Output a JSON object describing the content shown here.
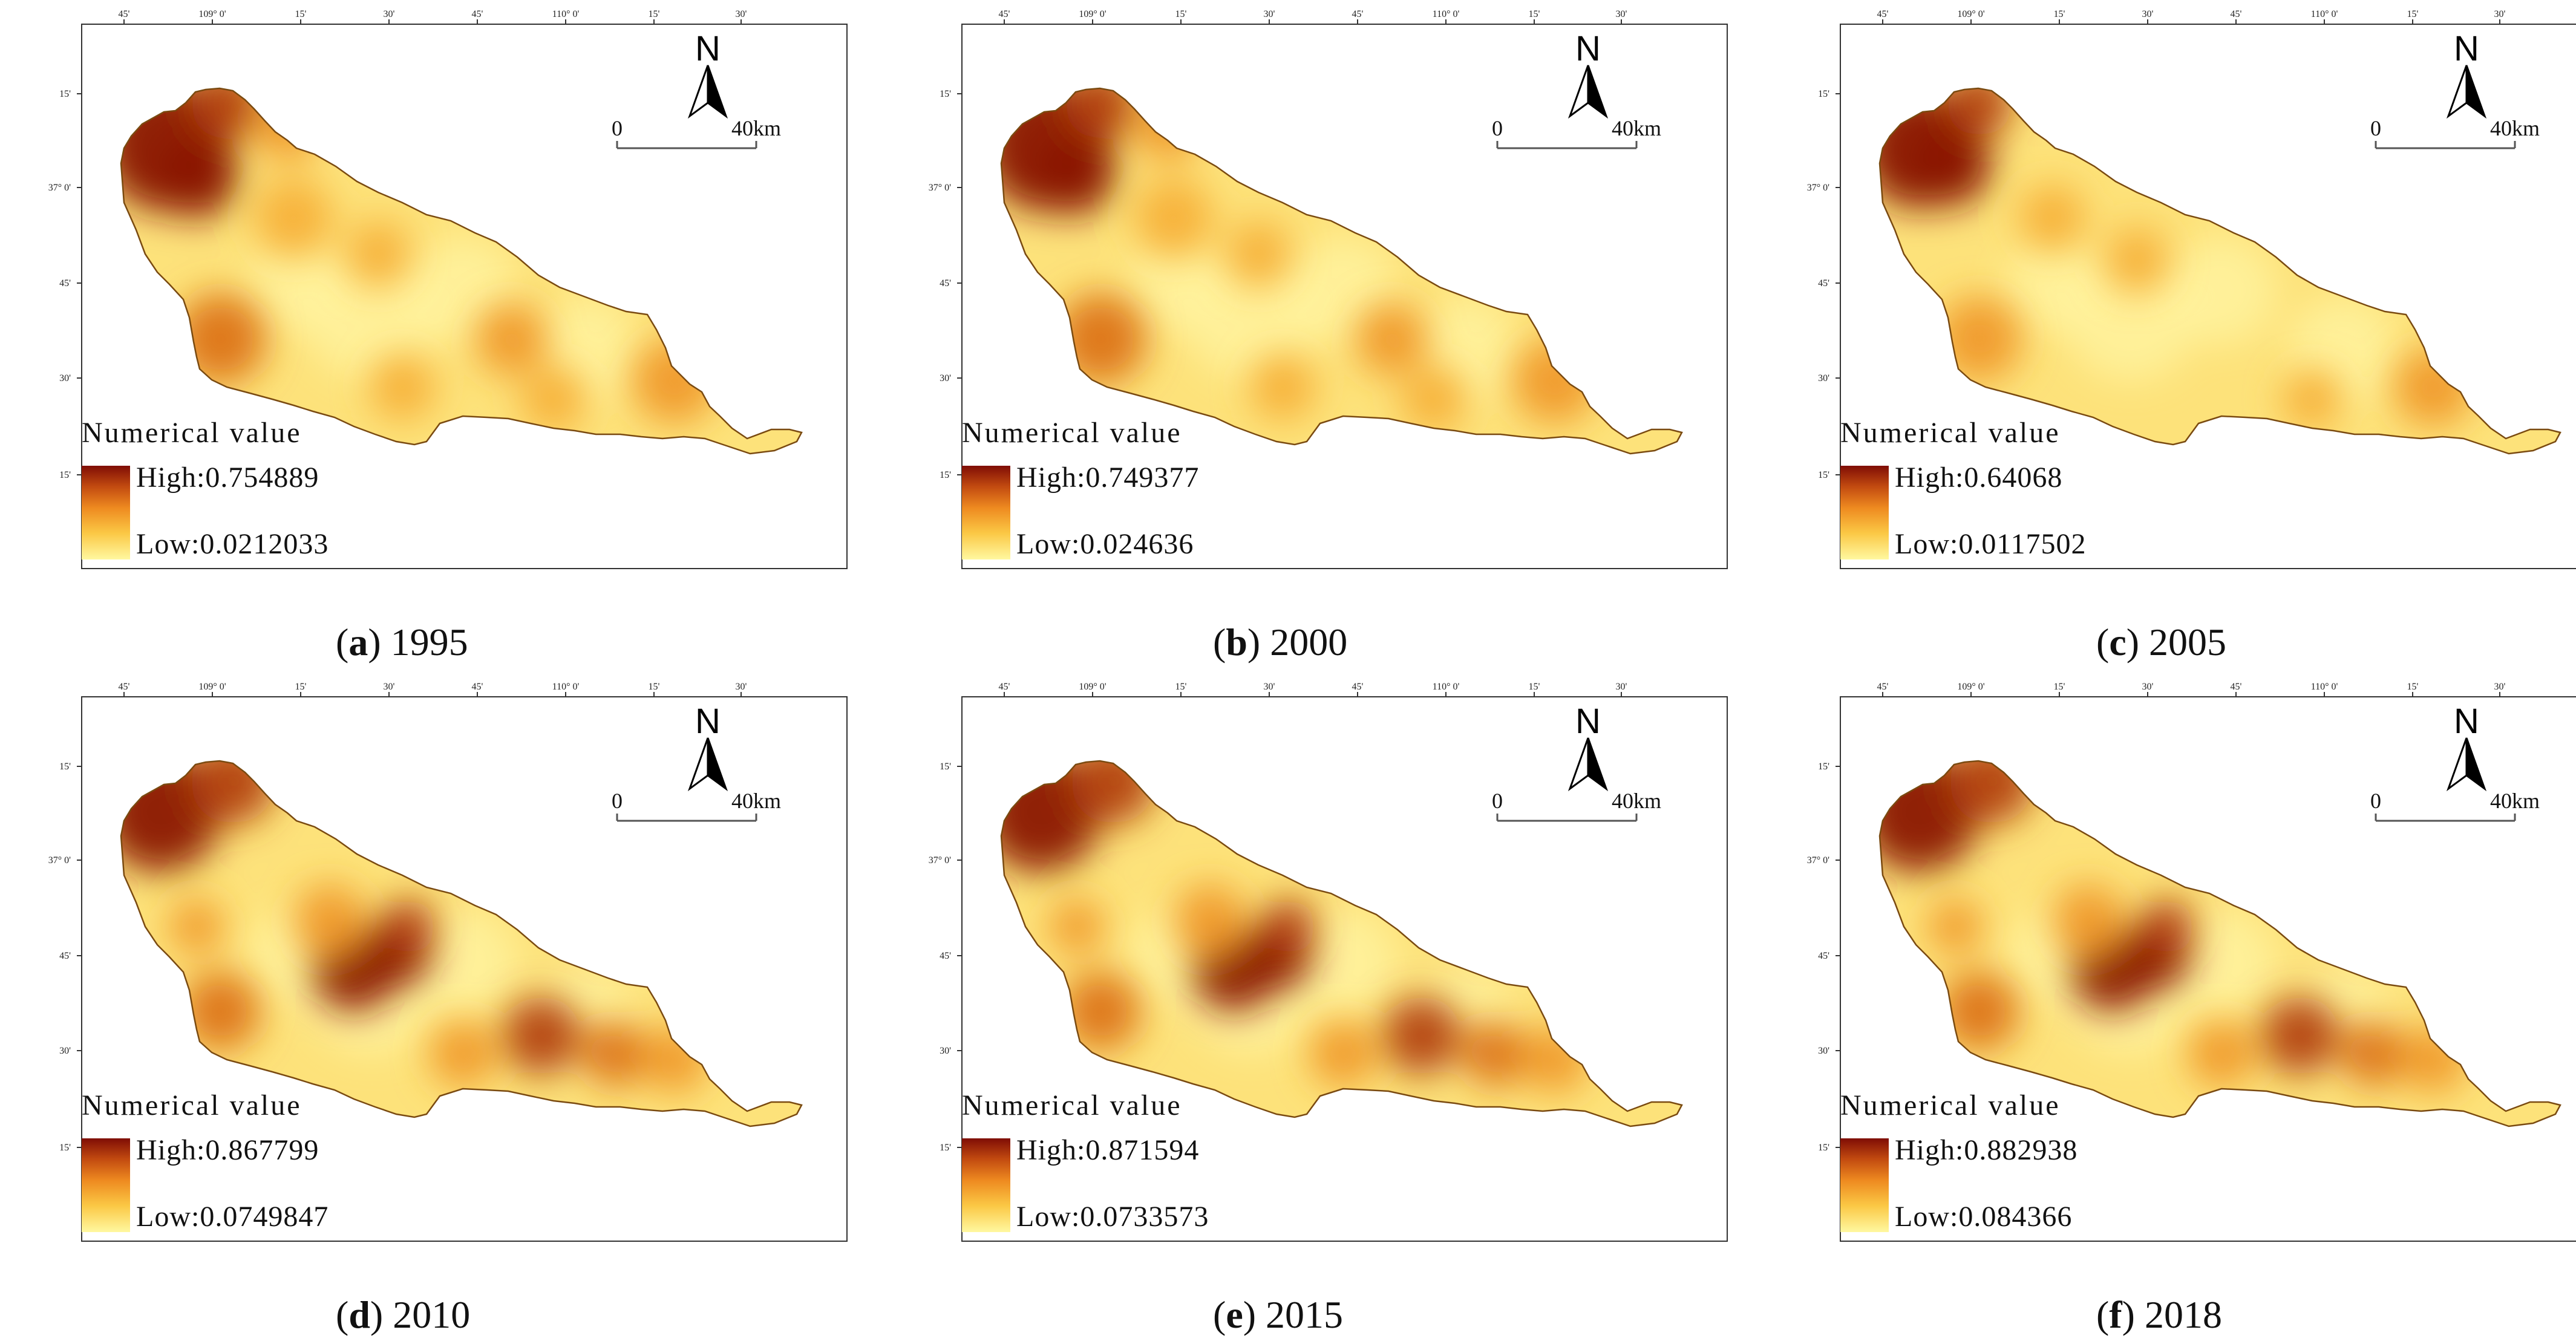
{
  "map": {
    "lon_labels": [
      "45'",
      "109° 0'",
      "15'",
      "30'",
      "45'",
      "110° 0'",
      "15'",
      "30'"
    ],
    "lat_labels": [
      "15'",
      "37° 0'",
      "45'",
      "30'",
      "15'"
    ],
    "north_label": "N",
    "scale_zero": "0",
    "scale_end": "40km",
    "legend_title": "Numerical value",
    "colors": {
      "high": "#7f0d05",
      "mid": "#ee8a20",
      "low": "#fff8a0",
      "frame": "#333333"
    }
  },
  "panels": [
    {
      "letter": "a",
      "year": "1995",
      "high": "High:0.754889",
      "low": "Low:0.0212033",
      "high_value": 0.754889,
      "low_value": 0.0212033
    },
    {
      "letter": "b",
      "year": "2000",
      "high": "High:0.749377",
      "low": "Low:0.024636",
      "high_value": 0.749377,
      "low_value": 0.024636
    },
    {
      "letter": "c",
      "year": "2005",
      "high": "High:0.64068",
      "low": "Low:0.0117502",
      "high_value": 0.64068,
      "low_value": 0.0117502
    },
    {
      "letter": "d",
      "year": "2010",
      "high": "High:0.867799",
      "low": "Low:0.0749847",
      "high_value": 0.867799,
      "low_value": 0.0749847
    },
    {
      "letter": "e",
      "year": "2015",
      "high": "High:0.871594",
      "low": "Low:0.0733573",
      "high_value": 0.871594,
      "low_value": 0.0733573
    },
    {
      "letter": "f",
      "year": "2018",
      "high": "High:0.882938",
      "low": "Low:0.084366",
      "high_value": 0.882938,
      "low_value": 0.084366
    }
  ]
}
